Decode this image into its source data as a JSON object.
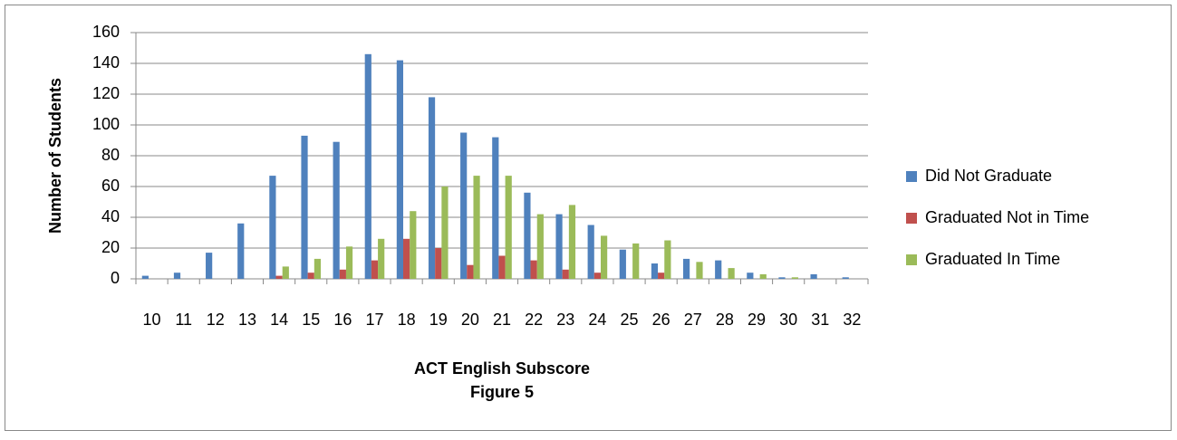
{
  "chart_data": {
    "type": "bar",
    "x_label": "ACT English Subscore",
    "caption": "Figure 5",
    "y_label": "Number of Students",
    "categories": [
      "10",
      "11",
      "12",
      "13",
      "14",
      "15",
      "16",
      "17",
      "18",
      "19",
      "20",
      "21",
      "22",
      "23",
      "24",
      "25",
      "26",
      "27",
      "28",
      "29",
      "30",
      "31",
      "32"
    ],
    "series": [
      {
        "name": "Did Not Graduate",
        "color": "#4f81bd",
        "values": [
          2,
          4,
          17,
          36,
          67,
          93,
          89,
          146,
          142,
          118,
          95,
          92,
          56,
          42,
          35,
          19,
          10,
          13,
          12,
          4,
          1,
          3,
          1
        ]
      },
      {
        "name": "Graduated Not in Time",
        "color": "#c0504d",
        "values": [
          0,
          0,
          0,
          0,
          2,
          4,
          6,
          12,
          26,
          20,
          9,
          15,
          12,
          6,
          4,
          0,
          4,
          0,
          0,
          0,
          0,
          0,
          0
        ]
      },
      {
        "name": "Graduated In Time",
        "color": "#9bbb59",
        "values": [
          0,
          0,
          0,
          0,
          8,
          13,
          21,
          26,
          44,
          60,
          67,
          67,
          42,
          48,
          28,
          23,
          25,
          11,
          7,
          3,
          1,
          0,
          0
        ]
      }
    ],
    "ylim": [
      0,
      160
    ],
    "yticks": [
      0,
      20,
      40,
      60,
      80,
      100,
      120,
      140,
      160
    ],
    "grid": true,
    "legend": "right"
  }
}
